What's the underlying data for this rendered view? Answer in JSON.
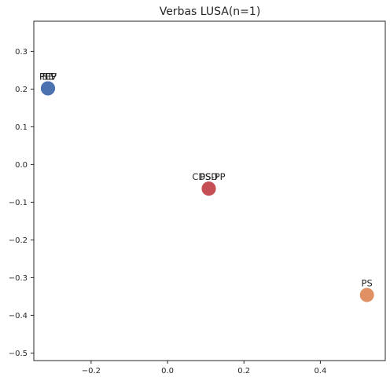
{
  "chart_data": {
    "type": "scatter",
    "title": "Verbas LUSA(n=1)",
    "xlabel": "",
    "ylabel": "",
    "xlim": [
      -0.35,
      0.57
    ],
    "ylim": [
      -0.52,
      0.38
    ],
    "xticks": [
      -0.2,
      0.0,
      0.2,
      0.4
    ],
    "xtick_labels": [
      "−0.2",
      "0.0",
      "0.2",
      "0.4"
    ],
    "yticks": [
      0.3,
      0.2,
      0.1,
      0.0,
      -0.1,
      -0.2,
      -0.3,
      -0.4,
      -0.5
    ],
    "ytick_labels": [
      "0.3",
      "0.2",
      "0.1",
      "0.0",
      "−0.1",
      "−0.2",
      "−0.3",
      "−0.4",
      "−0.5"
    ],
    "grid": false,
    "points": [
      {
        "labels": [
          "PCP",
          "PEV",
          "BE"
        ],
        "x": -0.313,
        "y": 0.202,
        "color": "#4c72b0"
      },
      {
        "labels": [
          "PSD",
          "CDS-PP"
        ],
        "x": 0.108,
        "y": -0.064,
        "color": "#c44e52"
      },
      {
        "labels": [
          "PS"
        ],
        "x": 0.522,
        "y": -0.346,
        "color": "#dd8452"
      }
    ]
  }
}
